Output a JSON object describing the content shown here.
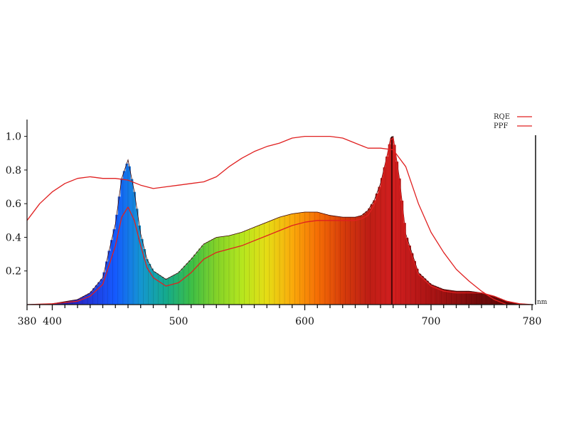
{
  "chart_data": {
    "type": "area",
    "title": "",
    "xlabel": "",
    "ylabel": "",
    "x_unit": "nm",
    "xlim": [
      380,
      780
    ],
    "ylim": [
      0,
      1.1
    ],
    "grid": false,
    "legend_position": "top-right",
    "x_tick_labels": [
      "380",
      "400",
      "500",
      "600",
      "700",
      "780"
    ],
    "x_ticks": [
      380,
      400,
      500,
      600,
      700,
      780
    ],
    "y_tick_labels": [
      "0.2",
      "0.4",
      "0.6",
      "0.8",
      "1.0"
    ],
    "y_ticks": [
      0.2,
      0.4,
      0.6,
      0.8,
      1.0
    ],
    "series": [
      {
        "name": "RQE",
        "color": "#e02020",
        "x": [
          380,
          390,
          400,
          410,
          420,
          430,
          440,
          450,
          460,
          470,
          480,
          490,
          500,
          510,
          520,
          530,
          540,
          550,
          560,
          570,
          580,
          590,
          600,
          610,
          620,
          630,
          640,
          650,
          660,
          670,
          680,
          690,
          700,
          710,
          720,
          730,
          740,
          750,
          760
        ],
        "values": [
          0.5,
          0.6,
          0.67,
          0.72,
          0.75,
          0.76,
          0.75,
          0.75,
          0.74,
          0.71,
          0.69,
          0.7,
          0.71,
          0.72,
          0.73,
          0.76,
          0.82,
          0.87,
          0.91,
          0.94,
          0.96,
          0.99,
          1.0,
          1.0,
          1.0,
          0.99,
          0.96,
          0.93,
          0.93,
          0.92,
          0.82,
          0.6,
          0.43,
          0.31,
          0.21,
          0.14,
          0.08,
          0.03,
          0.0
        ]
      },
      {
        "name": "PPF",
        "color": "#e02020",
        "x": [
          380,
          400,
          420,
          430,
          440,
          450,
          455,
          460,
          465,
          470,
          475,
          480,
          490,
          500,
          510,
          520,
          530,
          540,
          550,
          560,
          570,
          580,
          590,
          600,
          610,
          620,
          630,
          640,
          645,
          650,
          655,
          660,
          665,
          668,
          670,
          675,
          680,
          690,
          700,
          710,
          720,
          730,
          740,
          750,
          760,
          770,
          780
        ],
        "values": [
          0.0,
          0.005,
          0.02,
          0.05,
          0.12,
          0.35,
          0.52,
          0.58,
          0.5,
          0.35,
          0.22,
          0.16,
          0.11,
          0.13,
          0.19,
          0.27,
          0.31,
          0.33,
          0.35,
          0.38,
          0.41,
          0.44,
          0.47,
          0.49,
          0.5,
          0.5,
          0.5,
          0.5,
          0.51,
          0.53,
          0.59,
          0.7,
          0.87,
          0.98,
          0.99,
          0.73,
          0.4,
          0.18,
          0.11,
          0.08,
          0.07,
          0.07,
          0.07,
          0.05,
          0.02,
          0.005,
          0.0
        ]
      },
      {
        "name": "",
        "x": [
          380,
          400,
          420,
          430,
          440,
          450,
          455,
          460,
          465,
          470,
          475,
          480,
          490,
          500,
          510,
          520,
          530,
          540,
          550,
          560,
          570,
          580,
          590,
          600,
          610,
          620,
          630,
          640,
          645,
          650,
          655,
          660,
          665,
          668,
          670,
          675,
          680,
          690,
          700,
          710,
          720,
          730,
          740,
          750,
          760,
          770,
          780
        ],
        "values": [
          0.0,
          0.005,
          0.03,
          0.07,
          0.16,
          0.48,
          0.75,
          0.86,
          0.67,
          0.42,
          0.27,
          0.2,
          0.15,
          0.19,
          0.27,
          0.36,
          0.4,
          0.41,
          0.43,
          0.46,
          0.49,
          0.52,
          0.54,
          0.55,
          0.55,
          0.53,
          0.52,
          0.52,
          0.53,
          0.56,
          0.62,
          0.72,
          0.88,
          0.99,
          1.0,
          0.75,
          0.42,
          0.19,
          0.12,
          0.09,
          0.08,
          0.08,
          0.07,
          0.05,
          0.02,
          0.005,
          0.0
        ]
      }
    ],
    "legend": [
      {
        "label": "RQE",
        "color": "#e02020"
      },
      {
        "label": "PPF",
        "color": "#e02020"
      }
    ]
  }
}
